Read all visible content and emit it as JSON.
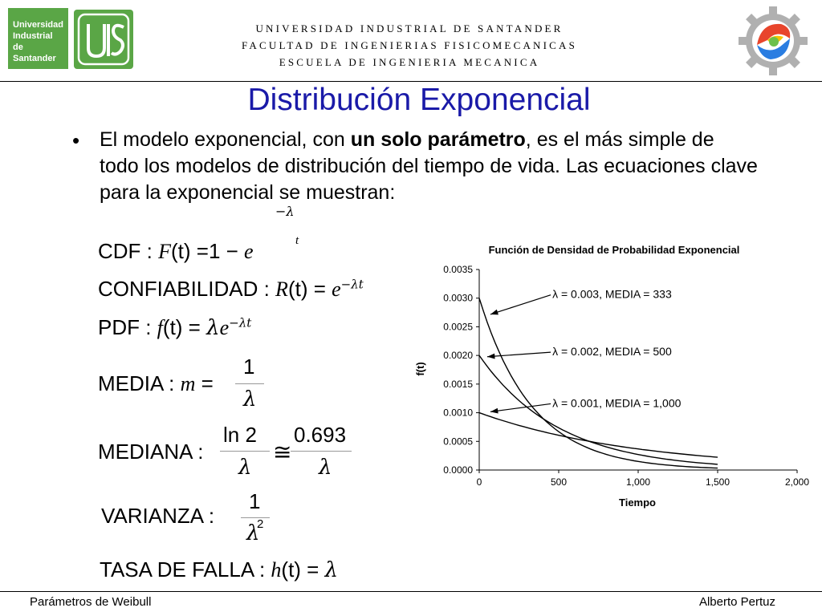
{
  "header": {
    "university_logo_text": [
      "Universidad",
      "Industrial de",
      "Santander"
    ],
    "lines": [
      "UNIVERSIDAD INDUSTRIAL DE SANTANDER",
      "FACULTAD DE INGENIERIAS FISICOMECANICAS",
      "ESCUELA DE INGENIERIA MECANICA"
    ]
  },
  "slide": {
    "title": "Distribución Exponencial",
    "bullet": "•",
    "text_before": "El modelo exponencial, con ",
    "text_bold": "un solo parámetro",
    "text_after": ", es el más simple de todo los modelos de distribución del tiempo de vida. Las ecuaciones clave para la exponencial se muestran:"
  },
  "equations": {
    "cdf": {
      "label": "CDF : ",
      "func": "F",
      "arg": "(t)",
      "rhs": " =1 − ",
      "base": "e",
      "exp_top": "−λ",
      "exp_bottom": "t"
    },
    "reliability": {
      "label": "CONFIABILIDAD : ",
      "func": "R",
      "arg": "(t)",
      "eq": " = ",
      "base": "e",
      "exp": "−λt"
    },
    "pdf": {
      "label": "PDF : ",
      "func": "f",
      "arg": "(t)",
      "eq": " = ",
      "lambda": "λ",
      "base": "e",
      "exp": "−λt"
    },
    "mean": {
      "label": "MEDIA : ",
      "var": "m",
      "eq": " = ",
      "num": "1",
      "den": "λ"
    },
    "median": {
      "label": "MEDIANA : ",
      "num1": "ln 2",
      "den1": "λ",
      "approx": "≅",
      "num2": "0.693",
      "den2": "λ"
    },
    "variance": {
      "label": "VARIANZA : ",
      "num": "1",
      "den": "λ",
      "den_exp": "2"
    },
    "hazard": {
      "label": "TASA DE FALLA : ",
      "func": "h",
      "arg": "(t)",
      "eq": " = ",
      "rhs": "λ"
    }
  },
  "chart_data": {
    "type": "line",
    "title": "Función de Densidad de Probabilidad Exponencial",
    "xlabel": "Tiempo",
    "ylabel": "f(t)",
    "xlim": [
      0,
      2000
    ],
    "ylim": [
      0,
      0.0035
    ],
    "x_ticks": [
      "0",
      "500",
      "1,000",
      "1,500",
      "2,000"
    ],
    "y_ticks": [
      "0.0000",
      "0.0005",
      "0.0010",
      "0.0015",
      "0.0020",
      "0.0025",
      "0.0030",
      "0.0035"
    ],
    "series": [
      {
        "lambda": 0.003,
        "x": [
          0,
          100,
          200,
          300,
          400,
          500,
          700,
          1000,
          1300,
          1500
        ],
        "y": [
          0.003,
          0.00222,
          0.00165,
          0.00122,
          0.0009,
          0.00067,
          0.00037,
          0.00015,
          6e-05,
          3e-05
        ]
      },
      {
        "lambda": 0.002,
        "x": [
          0,
          100,
          200,
          300,
          400,
          500,
          700,
          1000,
          1300,
          1500
        ],
        "y": [
          0.002,
          0.00164,
          0.00134,
          0.0011,
          0.0009,
          0.00074,
          0.00049,
          0.00027,
          0.00015,
          0.0001
        ]
      },
      {
        "lambda": 0.001,
        "x": [
          0,
          100,
          200,
          300,
          400,
          500,
          700,
          1000,
          1300,
          1500
        ],
        "y": [
          0.001,
          0.0009,
          0.00082,
          0.00074,
          0.00067,
          0.00061,
          0.0005,
          0.00037,
          0.00027,
          0.00022
        ]
      }
    ],
    "annotations": [
      {
        "text": "λ = 0.003, MEDIA = 333",
        "series": 0
      },
      {
        "text": "λ = 0.002, MEDIA = 500",
        "series": 1
      },
      {
        "text": "λ = 0.001, MEDIA = 1,000",
        "series": 2
      }
    ],
    "grid": false
  },
  "footer": {
    "left": "Parámetros de Weibull",
    "right": "Alberto Pertuz"
  }
}
